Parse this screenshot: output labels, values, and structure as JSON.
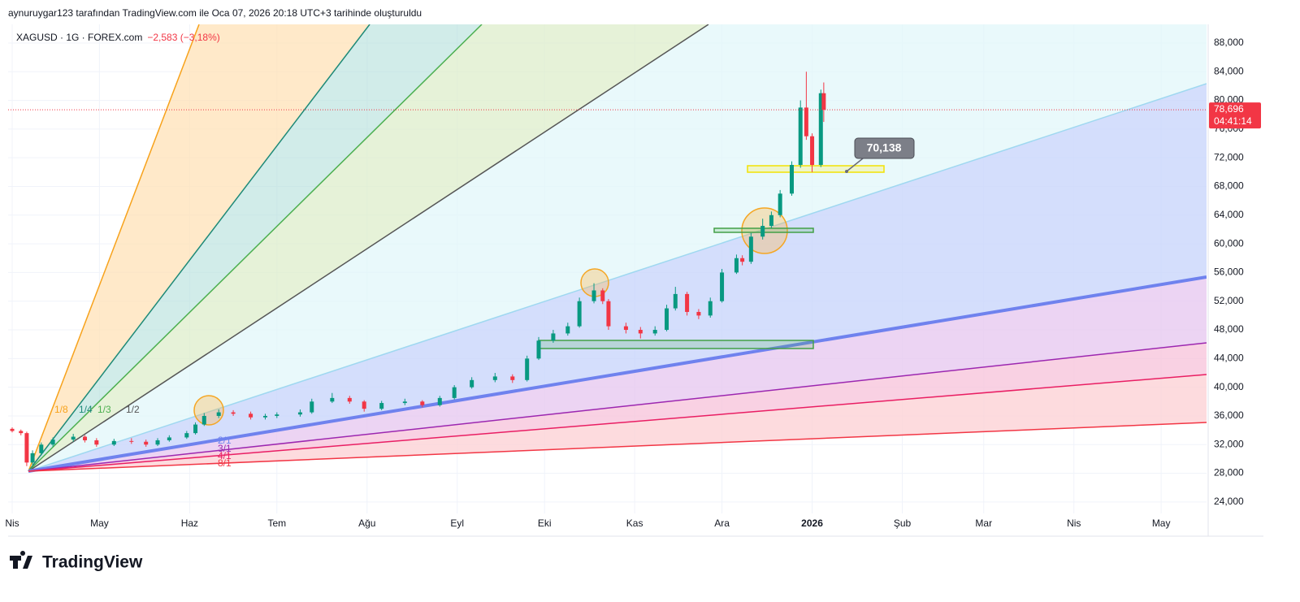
{
  "header": "aynuruygar123 tarafından TradingView.com ile Oca 07, 2026 20:18 UTC+3 tarihinde oluşturuldu",
  "brand": "TradingView",
  "chart_data": {
    "type": "candlestick",
    "title": "XAGUSD · 1G · FOREX.com",
    "change": "−2,583 (−3,18%)",
    "up_color": "#089981",
    "down_color": "#f23645",
    "x": [
      0,
      3,
      5,
      7,
      10,
      14,
      21,
      25,
      29,
      35,
      41,
      46,
      50,
      54,
      60,
      63,
      66,
      71,
      76,
      82,
      87,
      91,
      99,
      103,
      110,
      116,
      121,
      127,
      135,
      141,
      147,
      152,
      158,
      166,
      172,
      177,
      181,
      186,
      191,
      195,
      200,
      203,
      205,
      211,
      216,
      221,
      225,
      228,
      232,
      236,
      240,
      244,
      249,
      251,
      254,
      258,
      261,
      264,
      268,
      271,
      273,
      275,
      278,
      279
    ],
    "open": [
      34200,
      33900,
      33600,
      29500,
      30800,
      32000,
      32700,
      33100,
      32600,
      32000,
      32500,
      32400,
      32000,
      32600,
      33000,
      33600,
      34800,
      36000,
      36500,
      36300,
      35800,
      36000,
      36200,
      36500,
      38000,
      38500,
      38000,
      37000,
      37800,
      38000,
      37500,
      38500,
      40000,
      41000,
      41500,
      41000,
      44000,
      46500,
      47500,
      48500,
      52000,
      53500,
      52000,
      48500,
      48000,
      47500,
      48000,
      51000,
      53000,
      50500,
      50000,
      52000,
      56000,
      58000,
      57500,
      61000,
      62500,
      64000,
      67000,
      71000,
      79000,
      75000,
      71000,
      81000
    ],
    "high": [
      34400,
      34100,
      33800,
      31200,
      32300,
      33000,
      33500,
      33300,
      32900,
      32800,
      32900,
      32700,
      32900,
      33300,
      33900,
      35100,
      36400,
      36900,
      36800,
      36600,
      36300,
      36500,
      36900,
      38400,
      39200,
      38800,
      38200,
      38100,
      38400,
      38200,
      38800,
      40300,
      41400,
      42000,
      41800,
      44400,
      47000,
      48000,
      49000,
      52500,
      54500,
      53800,
      52300,
      49000,
      48400,
      48500,
      51500,
      54000,
      53300,
      50900,
      52500,
      56500,
      58500,
      58400,
      61500,
      63500,
      64500,
      67500,
      71500,
      80000,
      84000,
      75400,
      81500,
      82500
    ],
    "low": [
      33700,
      33300,
      29000,
      29200,
      30500,
      31700,
      32400,
      32300,
      31700,
      31800,
      32100,
      31700,
      31800,
      32400,
      32800,
      33400,
      34600,
      35700,
      36000,
      35500,
      35500,
      35700,
      35900,
      36300,
      37800,
      37700,
      36600,
      36800,
      37500,
      37200,
      37300,
      38300,
      39800,
      40700,
      40600,
      40800,
      43800,
      46200,
      47200,
      48300,
      51700,
      51600,
      48000,
      47500,
      46800,
      47200,
      47800,
      50700,
      50000,
      49500,
      49700,
      51800,
      55800,
      57000,
      57200,
      60600,
      62200,
      63700,
      66700,
      70600,
      74500,
      70000,
      70700,
      77000
    ],
    "close": [
      33900,
      33600,
      29500,
      30800,
      32000,
      32700,
      33100,
      32600,
      32000,
      32500,
      32400,
      32000,
      32600,
      33000,
      33600,
      34800,
      36000,
      36500,
      36300,
      35800,
      36000,
      36200,
      36500,
      38000,
      38500,
      38000,
      37000,
      37800,
      38000,
      37500,
      38500,
      40000,
      41000,
      41500,
      41000,
      44000,
      46500,
      47500,
      48500,
      52000,
      53500,
      52000,
      48500,
      48000,
      47500,
      48000,
      51000,
      53000,
      50500,
      50000,
      52000,
      56000,
      58000,
      57500,
      61000,
      62500,
      64000,
      67000,
      71000,
      79000,
      75000,
      71000,
      81000,
      78696
    ],
    "xlim": [
      -1.4,
      410.6
    ],
    "xticks": [
      {
        "value": 0,
        "label": "Nis"
      },
      {
        "value": 30,
        "label": "May"
      },
      {
        "value": 61,
        "label": "Haz"
      },
      {
        "value": 91,
        "label": "Tem"
      },
      {
        "value": 122,
        "label": "Ağu"
      },
      {
        "value": 153,
        "label": "Eyl"
      },
      {
        "value": 183,
        "label": "Eki"
      },
      {
        "value": 214,
        "label": "Kas"
      },
      {
        "value": 244,
        "label": "Ara"
      },
      {
        "value": 275,
        "label": "2026"
      },
      {
        "value": 306,
        "label": "Şub"
      },
      {
        "value": 334,
        "label": "Mar"
      },
      {
        "value": 365,
        "label": "Nis"
      },
      {
        "value": 395,
        "label": "May"
      }
    ],
    "ylim": [
      22400,
      90600
    ],
    "yticks": [
      {
        "value": 24000,
        "label": "24,000"
      },
      {
        "value": 28000,
        "label": "28,000"
      },
      {
        "value": 32000,
        "label": "32,000"
      },
      {
        "value": 36000,
        "label": "36,000"
      },
      {
        "value": 40000,
        "label": "40,000"
      },
      {
        "value": 44000,
        "label": "44,000"
      },
      {
        "value": 48000,
        "label": "48,000"
      },
      {
        "value": 52000,
        "label": "52,000"
      },
      {
        "value": 56000,
        "label": "56,000"
      },
      {
        "value": 60000,
        "label": "60,000"
      },
      {
        "value": 64000,
        "label": "64,000"
      },
      {
        "value": 68000,
        "label": "68,000"
      },
      {
        "value": 72000,
        "label": "72,000"
      },
      {
        "value": 76000,
        "label": "76,000"
      },
      {
        "value": 80000,
        "label": "80,000"
      },
      {
        "value": 84000,
        "label": "84,000"
      },
      {
        "value": 88000,
        "label": "88,000"
      }
    ],
    "last_price": {
      "value": 78696,
      "label": "78,696"
    },
    "countdown": "04:41:14",
    "annotation": "70,138",
    "fan_labels": [
      "1/8",
      "1/4",
      "1/3",
      "1/2",
      "2/1",
      "3/1",
      "4/1",
      "8/1"
    ],
    "grid": true
  }
}
